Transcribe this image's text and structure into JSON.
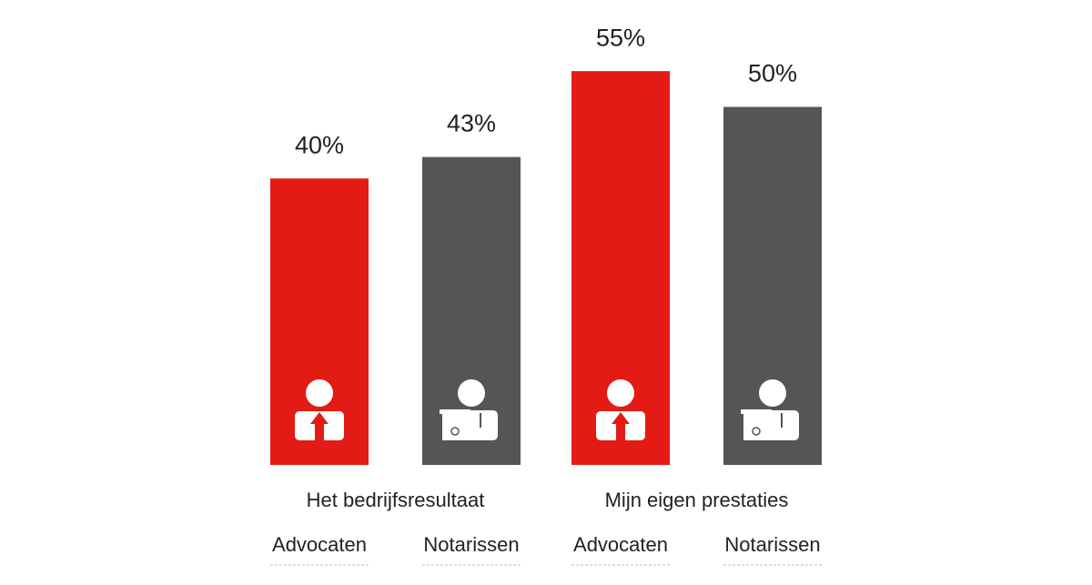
{
  "chart_data": {
    "type": "bar",
    "categories": [
      "Het bedrijfsresultaat",
      "Mijn eigen prestaties"
    ],
    "series": [
      {
        "name": "Advocaten",
        "color": "#e31b14",
        "values": [
          40,
          55
        ],
        "value_labels": [
          "40%",
          "55%"
        ]
      },
      {
        "name": "Notarissen",
        "color": "#555555",
        "values": [
          43,
          50
        ],
        "value_labels": [
          "43%",
          "50%"
        ]
      }
    ]
  }
}
